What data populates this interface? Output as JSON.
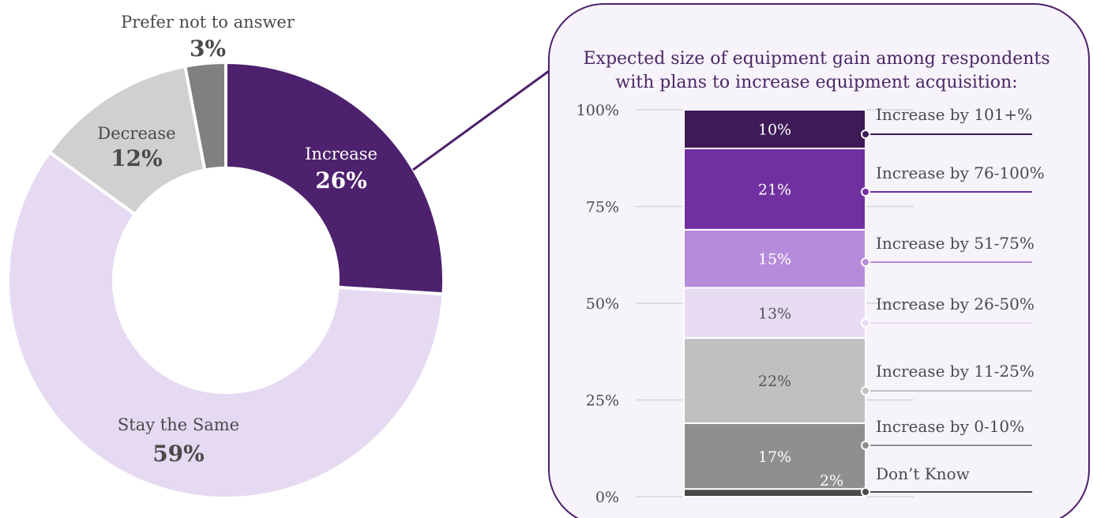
{
  "colors": {
    "increase": "#4d216d",
    "stay_the_same": "#e6daf2",
    "decrease": "#d0d0d0",
    "prefer_not": "#808080",
    "panel_border": "#4d216d",
    "panel_fill": "#f7f3fa",
    "grid": "#d6d6d6",
    "text_dark": "#4a4a4a"
  },
  "chart_data": [
    {
      "type": "pie",
      "categories": [
        "Increase",
        "Stay the Same",
        "Decrease",
        "Prefer not to answer"
      ],
      "values": [
        26,
        59,
        12,
        3
      ],
      "value_labels": [
        "26%",
        "59%",
        "12%",
        "3%"
      ],
      "unit": "%"
    },
    {
      "type": "bar",
      "title": "Expected size of equipment gain among respondents with plans to increase equipment acquisition:",
      "title_lines": [
        "Expected size of equipment gain among respondents",
        "with plans to increase equipment acquisition:"
      ],
      "stacked": true,
      "ylim": [
        0,
        100
      ],
      "yticks": [
        "0%",
        "25%",
        "50%",
        "75%",
        "100%"
      ],
      "ytick_values": [
        0,
        25,
        50,
        75,
        100
      ],
      "series": [
        {
          "name": "Don’t Know",
          "value": 2,
          "label": "2%",
          "color": "#4a4a4a"
        },
        {
          "name": "Increase by 0-10%",
          "value": 17,
          "label": "17%",
          "color": "#8f8f8f"
        },
        {
          "name": "Increase by 11-25%",
          "value": 22,
          "label": "22%",
          "color": "#c0c0c0"
        },
        {
          "name": "Increase by 26-50%",
          "value": 13,
          "label": "13%",
          "color": "#e8dcf3"
        },
        {
          "name": "Increase by 51-75%",
          "value": 15,
          "label": "15%",
          "color": "#b78bdb"
        },
        {
          "name": "Increase by 76-100%",
          "value": 21,
          "label": "21%",
          "color": "#7030a0"
        },
        {
          "name": "Increase by 101+%",
          "value": 10,
          "label": "10%",
          "color": "#3e1a56"
        }
      ]
    }
  ]
}
